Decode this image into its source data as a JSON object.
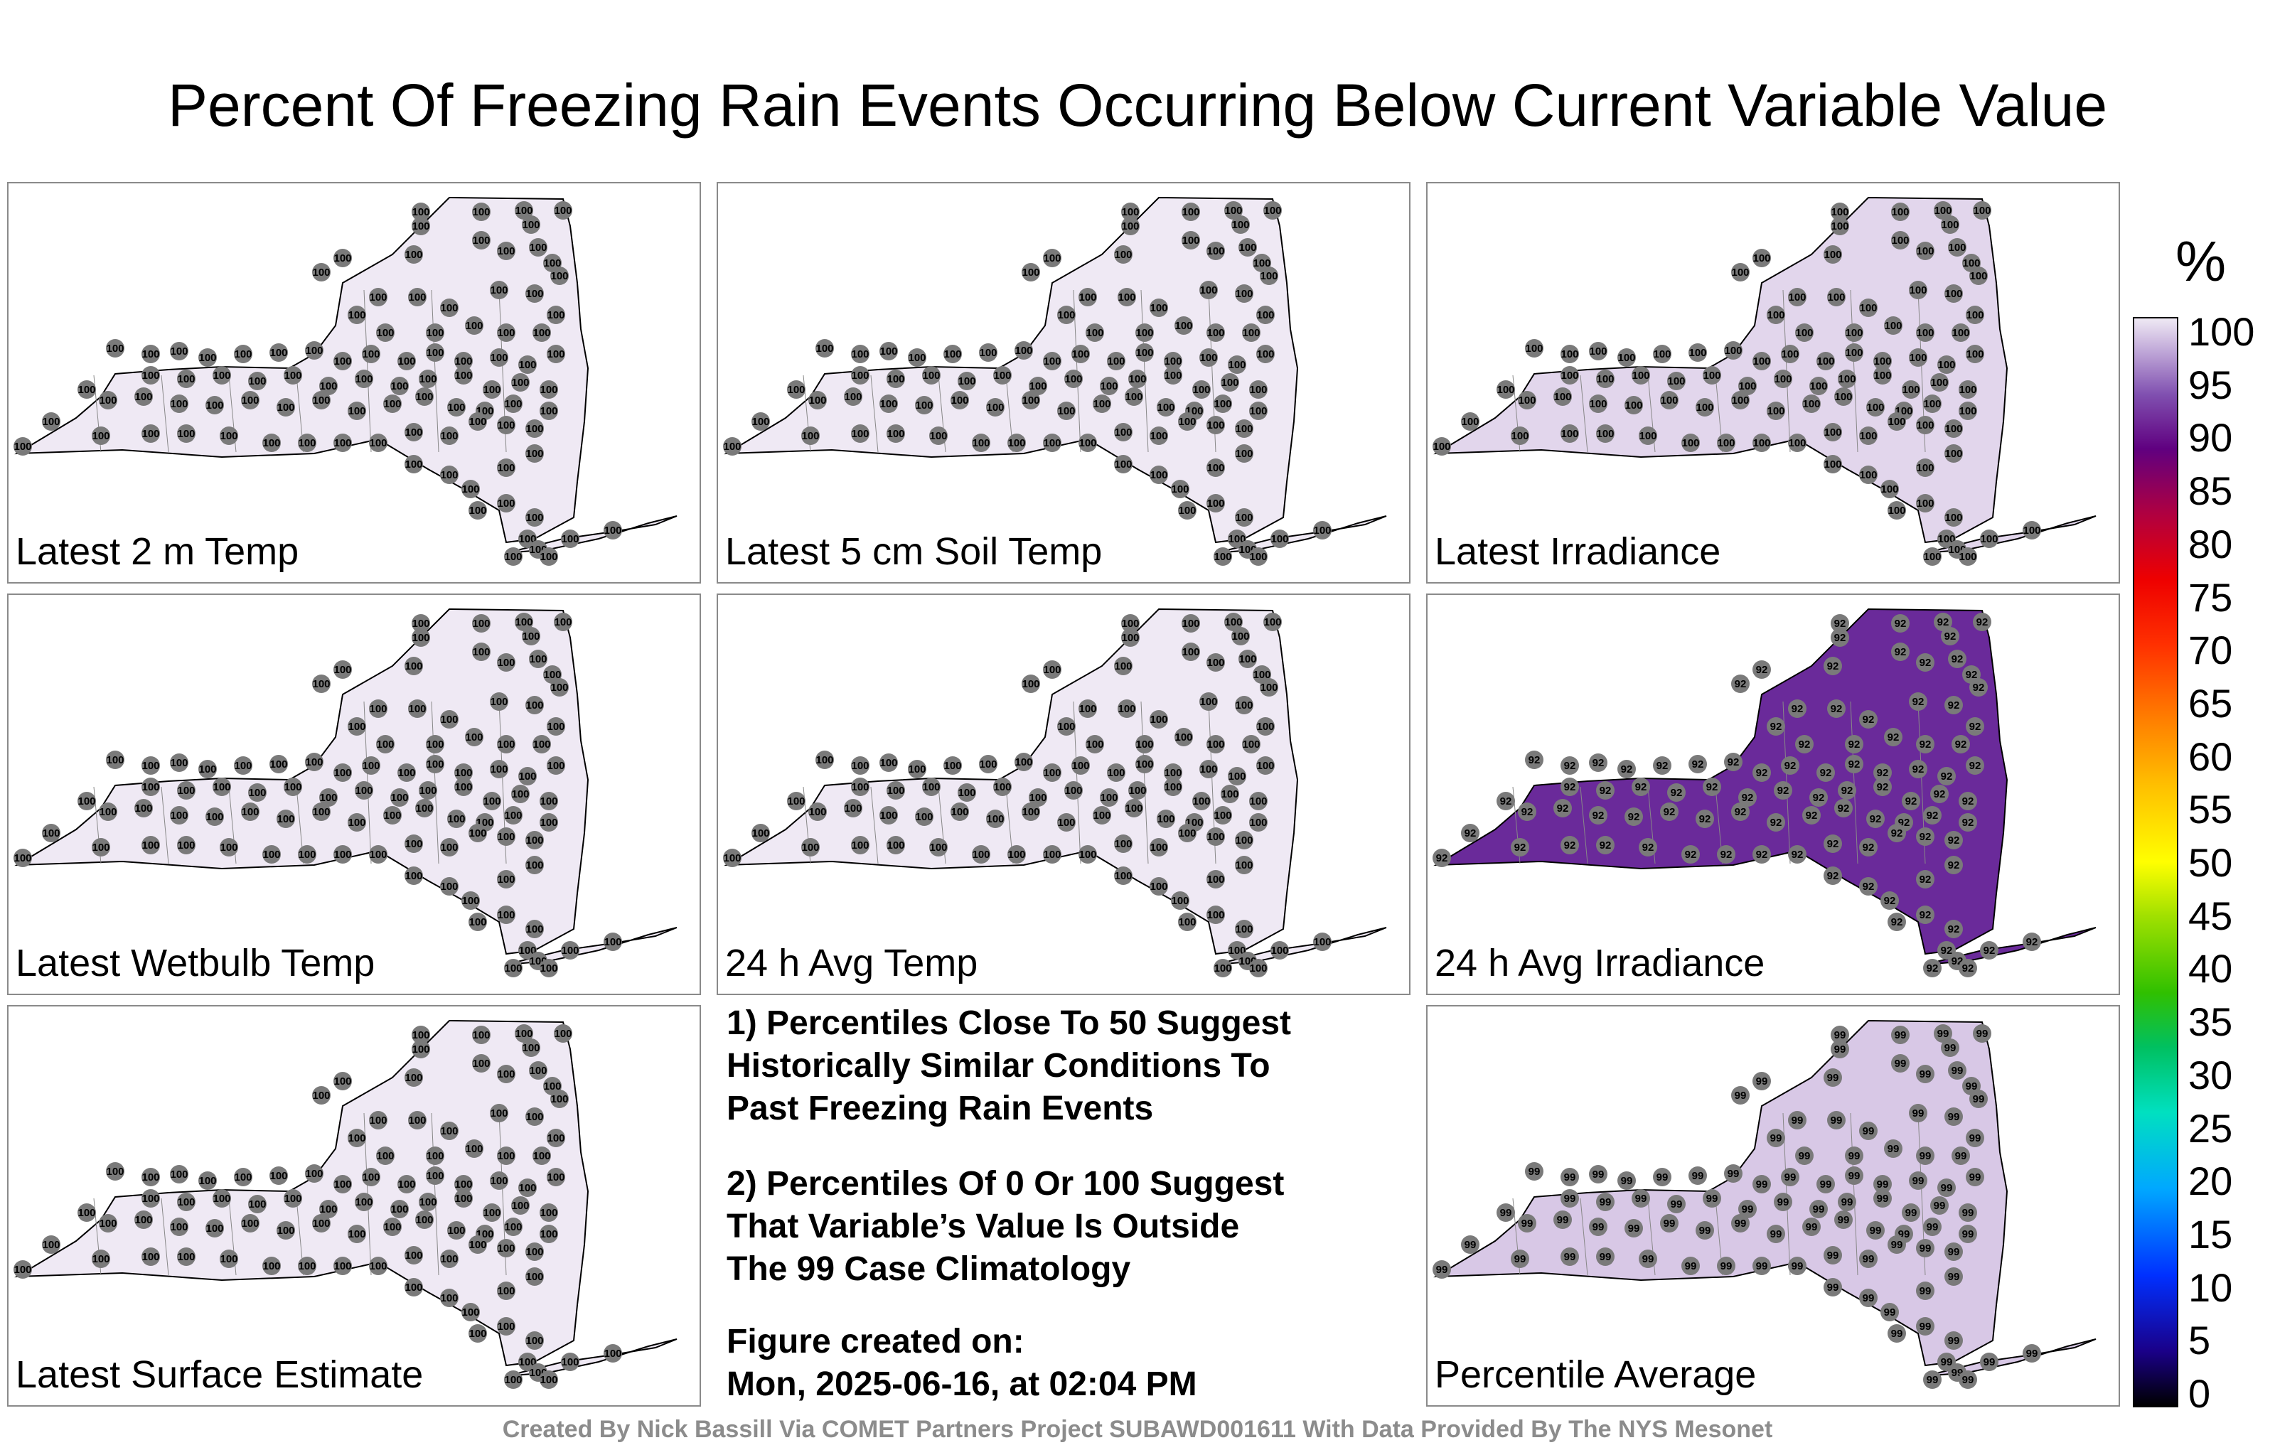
{
  "title": "Percent Of Freezing Rain Events Occurring Below Current Variable Value",
  "panels": [
    {
      "label": "Latest 2 m Temp",
      "fill": "#efe9f4",
      "values": "100"
    },
    {
      "label": "Latest 5 cm Soil Temp",
      "fill": "#efe9f4",
      "values": "100"
    },
    {
      "label": "Latest Irradiance",
      "fill": "#e2d6ec",
      "values": "100"
    },
    {
      "label": "Latest Wetbulb Temp",
      "fill": "#efe9f4",
      "values": "100"
    },
    {
      "label": "24 h Avg Temp",
      "fill": "#efe9f4",
      "values": "100"
    },
    {
      "label": "24 h Avg Irradiance",
      "fill": "#6a2a9a",
      "values": "92"
    },
    {
      "label": "Latest Surface Estimate",
      "fill": "#efe9f4",
      "values": "100"
    },
    {
      "label": "Percentile Average",
      "fill": "#d8c8e6",
      "values": "99"
    }
  ],
  "info": {
    "line1": "1) Percentiles Close To 50 Suggest",
    "line2": "Historically Similar Conditions To",
    "line3": "Past Freezing Rain Events",
    "line4": "2) Percentiles Of 0 Or 100 Suggest",
    "line5": "That Variable’s Value Is Outside",
    "line6": "The 99 Case Climatology",
    "line7": "Figure created on:",
    "line8": "Mon, 2025-06-16, at 02:04 PM"
  },
  "colorbar": {
    "unit": "%",
    "ticks": [
      "100",
      "95",
      "90",
      "85",
      "80",
      "75",
      "70",
      "65",
      "60",
      "55",
      "50",
      "45",
      "40",
      "35",
      "30",
      "25",
      "20",
      "15",
      "10",
      "5",
      "0"
    ]
  },
  "footer": "Created By Nick Bassill Via COMET Partners Project SUBAWD001611 With Data Provided By The NYS Mesonet"
}
